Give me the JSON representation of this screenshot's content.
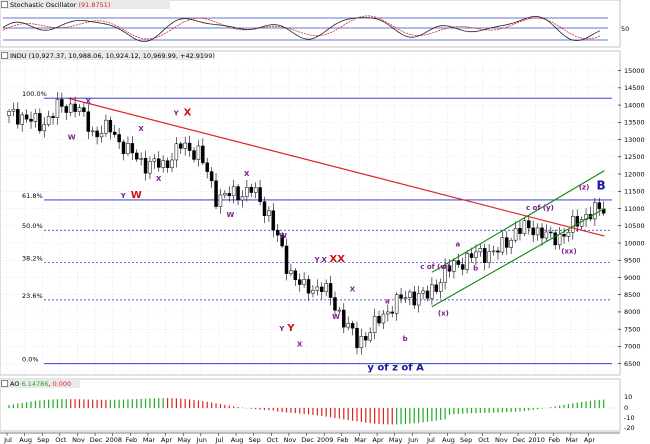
{
  "colors": {
    "panel_bg": "#ffffff",
    "title_bar": "#d4d0c8",
    "gridline": "#c8c8e6",
    "fib_line": "#2222cc",
    "trend_line": "#dd2222",
    "channel": "#118811",
    "stoch_k": "#222222",
    "stoch_d": "#dd2222",
    "ao_up": "#22aa22",
    "ao_down": "#dd2222",
    "annotation_purple": "#7a1f8c",
    "annotation_red": "#cc1111",
    "annotation_blue": "#1a1aa0"
  },
  "panels": {
    "stochastic": {
      "icon": "stochastic-icon",
      "title": "Stochastic Oscillator",
      "value": "(91.8751)",
      "axis": [
        "50"
      ]
    },
    "price": {
      "icon": "index-icon",
      "title": "INDU",
      "ohlc": "(10,927.37, 10,988.06, 10,924.12, 10,969.99, +42.9199)"
    },
    "ao": {
      "icon": "ao-icon",
      "title": "AO",
      "value1": "6.14786",
      "value2": "0.000",
      "axis": [
        "10",
        "0",
        "-10",
        "-20"
      ]
    }
  },
  "x_axis_labels": [
    "Jul",
    "Aug",
    "Sep",
    "Oct",
    "Nov",
    "Dec",
    "2008",
    "Feb",
    "Mar",
    "Apr",
    "May",
    "Jun",
    "Jul",
    "Aug",
    "Sep",
    "Oct",
    "Nov",
    "Dec",
    "2009",
    "Feb",
    "Mar",
    "Apr",
    "May",
    "Jun",
    "Jul",
    "Aug",
    "Sep",
    "Oct",
    "Nov",
    "Dec",
    "2010",
    "Feb",
    "Mar",
    "Apr"
  ],
  "chart_data": {
    "type": "candlestick",
    "y_axis_ticks": [
      6500,
      7000,
      7500,
      8000,
      8500,
      9000,
      9500,
      10000,
      10500,
      11000,
      11500,
      12000,
      12500,
      13000,
      13500,
      14000,
      14500,
      15000
    ],
    "ylim": [
      6200,
      15250
    ],
    "fib_levels": [
      {
        "label": "100.0%",
        "value": 14200
      },
      {
        "label": "61.8%",
        "value": 11250
      },
      {
        "label": "50.0%",
        "value": 10370
      },
      {
        "label": "38.2%",
        "value": 9440
      },
      {
        "label": "23.6%",
        "value": 8350
      },
      {
        "label": "0.0%",
        "value": 6500
      }
    ],
    "trend_line": {
      "from": [
        "Oct 2007",
        14200
      ],
      "to": [
        "Apr 2010",
        10200
      ]
    },
    "channel_lines": [
      {
        "from": [
          "Jul 2009",
          9150
        ],
        "to": [
          "Apr 2010",
          12100
        ]
      },
      {
        "from": [
          "Jul 2009",
          8150
        ],
        "to": [
          "Apr 2010",
          11000
        ]
      }
    ],
    "monthly_closes": [
      {
        "month": "Jul 2007",
        "value": 13700
      },
      {
        "month": "Aug 2007",
        "value": 13400
      },
      {
        "month": "Sep 2007",
        "value": 13900
      },
      {
        "month": "Oct 2007",
        "value": 14000
      },
      {
        "month": "Nov 2007",
        "value": 13200
      },
      {
        "month": "Dec 2007",
        "value": 13300
      },
      {
        "month": "Jan 2008",
        "value": 12650
      },
      {
        "month": "Feb 2008",
        "value": 12300
      },
      {
        "month": "Mar 2008",
        "value": 12250
      },
      {
        "month": "Apr 2008",
        "value": 12800
      },
      {
        "month": "May 2008",
        "value": 12650
      },
      {
        "month": "Jun 2008",
        "value": 11350
      },
      {
        "month": "Jul 2008",
        "value": 11400
      },
      {
        "month": "Aug 2008",
        "value": 11550
      },
      {
        "month": "Sep 2008",
        "value": 10850
      },
      {
        "month": "Oct 2008",
        "value": 9350
      },
      {
        "month": "Nov 2008",
        "value": 8650
      },
      {
        "month": "Dec 2008",
        "value": 8750
      },
      {
        "month": "Jan 2009",
        "value": 8000
      },
      {
        "month": "Feb 2009",
        "value": 7100
      },
      {
        "month": "Mar 2009",
        "value": 7600
      },
      {
        "month": "Apr 2009",
        "value": 8200
      },
      {
        "month": "May 2009",
        "value": 8500
      },
      {
        "month": "Jun 2009",
        "value": 8450
      },
      {
        "month": "Jul 2009",
        "value": 9150
      },
      {
        "month": "Aug 2009",
        "value": 9500
      },
      {
        "month": "Sep 2009",
        "value": 9700
      },
      {
        "month": "Oct 2009",
        "value": 9750
      },
      {
        "month": "Nov 2009",
        "value": 10350
      },
      {
        "month": "Dec 2009",
        "value": 10450
      },
      {
        "month": "Jan 2010",
        "value": 10100
      },
      {
        "month": "Feb 2010",
        "value": 10350
      },
      {
        "month": "Mar 2010",
        "value": 10850
      },
      {
        "month": "Apr 2010",
        "value": 10970
      }
    ],
    "annotations": [
      {
        "text": "X",
        "color": "purple",
        "size": "small",
        "at": [
          "Nov 2007",
          14050
        ]
      },
      {
        "text": "W",
        "color": "purple",
        "size": "small",
        "at": [
          "Oct 2007",
          13000
        ]
      },
      {
        "text": "Y",
        "color": "purple",
        "size": "small",
        "at": [
          "Jan 2008",
          11300
        ]
      },
      {
        "text": "W",
        "color": "red",
        "size": "large",
        "at": [
          "Jan 2008",
          11300
        ],
        "dx": 10
      },
      {
        "text": "X",
        "color": "purple",
        "size": "small",
        "at": [
          "Feb 2008",
          13250
        ]
      },
      {
        "text": "X",
        "color": "purple",
        "size": "small",
        "at": [
          "Mar 2008",
          11800
        ]
      },
      {
        "text": "Y",
        "color": "purple",
        "size": "small",
        "at": [
          "Apr 2008",
          13700
        ]
      },
      {
        "text": "X",
        "color": "red",
        "size": "large",
        "at": [
          "Apr 2008",
          13700
        ],
        "dx": 10
      },
      {
        "text": "X",
        "color": "purple",
        "size": "small",
        "at": [
          "Aug 2008",
          11950
        ]
      },
      {
        "text": "W",
        "color": "purple",
        "size": "small",
        "at": [
          "Jul 2008",
          10750
        ]
      },
      {
        "text": "W",
        "color": "purple",
        "size": "small",
        "at": [
          "Oct 2008",
          10150
        ]
      },
      {
        "text": "Y",
        "color": "purple",
        "size": "small",
        "at": [
          "Oct 2008",
          7450
        ]
      },
      {
        "text": "Y",
        "color": "red",
        "size": "large",
        "at": [
          "Oct 2008",
          7450
        ],
        "dx": 8
      },
      {
        "text": "X",
        "color": "purple",
        "size": "small",
        "at": [
          "Nov 2008",
          7000
        ]
      },
      {
        "text": "Y",
        "color": "purple",
        "size": "small",
        "at": [
          "Dec 2008",
          9450
        ]
      },
      {
        "text": "X",
        "color": "purple",
        "size": "small",
        "at": [
          "Dec 2008",
          9450
        ],
        "dx": 7
      },
      {
        "text": "XX",
        "color": "red",
        "size": "large",
        "at": [
          "Dec 2008",
          9450
        ],
        "dx": 15
      },
      {
        "text": "W",
        "color": "purple",
        "size": "small",
        "at": [
          "Jan 2009",
          7800
        ]
      },
      {
        "text": "X",
        "color": "purple",
        "size": "small",
        "at": [
          "Feb 2009",
          8600
        ]
      },
      {
        "text": "y of z of A",
        "color": "blue",
        "size": "large",
        "at": [
          "Mar 2009",
          6300
        ]
      },
      {
        "text": "a",
        "color": "purple",
        "size": "small",
        "at": [
          "Apr 2009",
          8250
        ]
      },
      {
        "text": "b",
        "color": "purple",
        "size": "small",
        "at": [
          "May 2009",
          7150
        ]
      },
      {
        "text": "c of (w)",
        "color": "purple",
        "size": "small",
        "at": [
          "Jun 2009",
          9250
        ]
      },
      {
        "text": "(x)",
        "color": "purple",
        "size": "small",
        "at": [
          "Jul 2009",
          7900
        ]
      },
      {
        "text": "a",
        "color": "purple",
        "size": "small",
        "at": [
          "Aug 2009",
          9900
        ]
      },
      {
        "text": "b",
        "color": "purple",
        "size": "small",
        "at": [
          "Sep 2009",
          9200
        ]
      },
      {
        "text": "c of (y)",
        "color": "purple",
        "size": "small",
        "at": [
          "Dec 2009",
          10950
        ]
      },
      {
        "text": "(xx)",
        "color": "purple",
        "size": "small",
        "at": [
          "Feb 2010",
          9700
        ]
      },
      {
        "text": "(z)",
        "color": "purple",
        "size": "small",
        "at": [
          "Mar 2010",
          11550
        ]
      },
      {
        "text": "B",
        "color": "blue",
        "size": "xl",
        "at": [
          "Apr 2010",
          11550
        ]
      }
    ]
  }
}
